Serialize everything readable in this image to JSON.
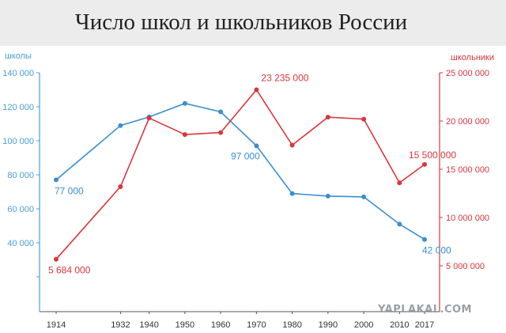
{
  "header": {
    "title": "Число школ и школьников России"
  },
  "watermark": "YAPLAKAL.COM",
  "colors": {
    "schools": "#3a8fd0",
    "students": "#d9363e",
    "axis_left": "#4a9fd8",
    "axis_right": "#d9363e"
  },
  "chart_data": {
    "type": "line",
    "title": "Число школ и школьников России",
    "categories": [
      "1914",
      "1932",
      "1940",
      "1950",
      "1960",
      "1970",
      "1980",
      "1990",
      "2000",
      "2010",
      "2017"
    ],
    "x": [
      1914,
      1932,
      1940,
      1950,
      1960,
      1970,
      1980,
      1990,
      2000,
      2010,
      2017
    ],
    "y_left": {
      "label": "школы",
      "range": [
        20000,
        140000
      ],
      "ticks": [
        40000,
        60000,
        80000,
        100000,
        120000,
        140000
      ],
      "tick_labels": [
        "40 000",
        "60 000",
        "80 000",
        "100 000",
        "120 000",
        "140 000"
      ]
    },
    "y_right": {
      "label": "школьники",
      "range": [
        5000000,
        25000000
      ],
      "ticks": [
        5000000,
        10000000,
        15000000,
        20000000,
        25000000
      ],
      "tick_labels": [
        "5 000 000",
        "10 000 000",
        "15 000 000",
        "20 000 000",
        "25 000 000"
      ]
    },
    "series": [
      {
        "axis": "left",
        "values": [
          77000,
          109000,
          114000,
          122000,
          117000,
          97000,
          69000,
          67500,
          67000,
          51000,
          42000
        ]
      },
      {
        "axis": "right",
        "values": [
          5684000,
          13200000,
          20300000,
          18600000,
          18800000,
          23235000,
          17500000,
          20400000,
          20200000,
          13600000,
          15500000
        ]
      }
    ],
    "annotations": [
      {
        "series": 0,
        "index": 0,
        "text": "77 000"
      },
      {
        "series": 0,
        "index": 5,
        "text": "97 000"
      },
      {
        "series": 0,
        "index": 10,
        "text": "42 000"
      },
      {
        "series": 1,
        "index": 0,
        "text": "5 684 000"
      },
      {
        "series": 1,
        "index": 5,
        "text": "23 235 000"
      },
      {
        "series": 1,
        "index": 10,
        "text": "15 500 000"
      }
    ],
    "grid": false,
    "legend": "none"
  }
}
